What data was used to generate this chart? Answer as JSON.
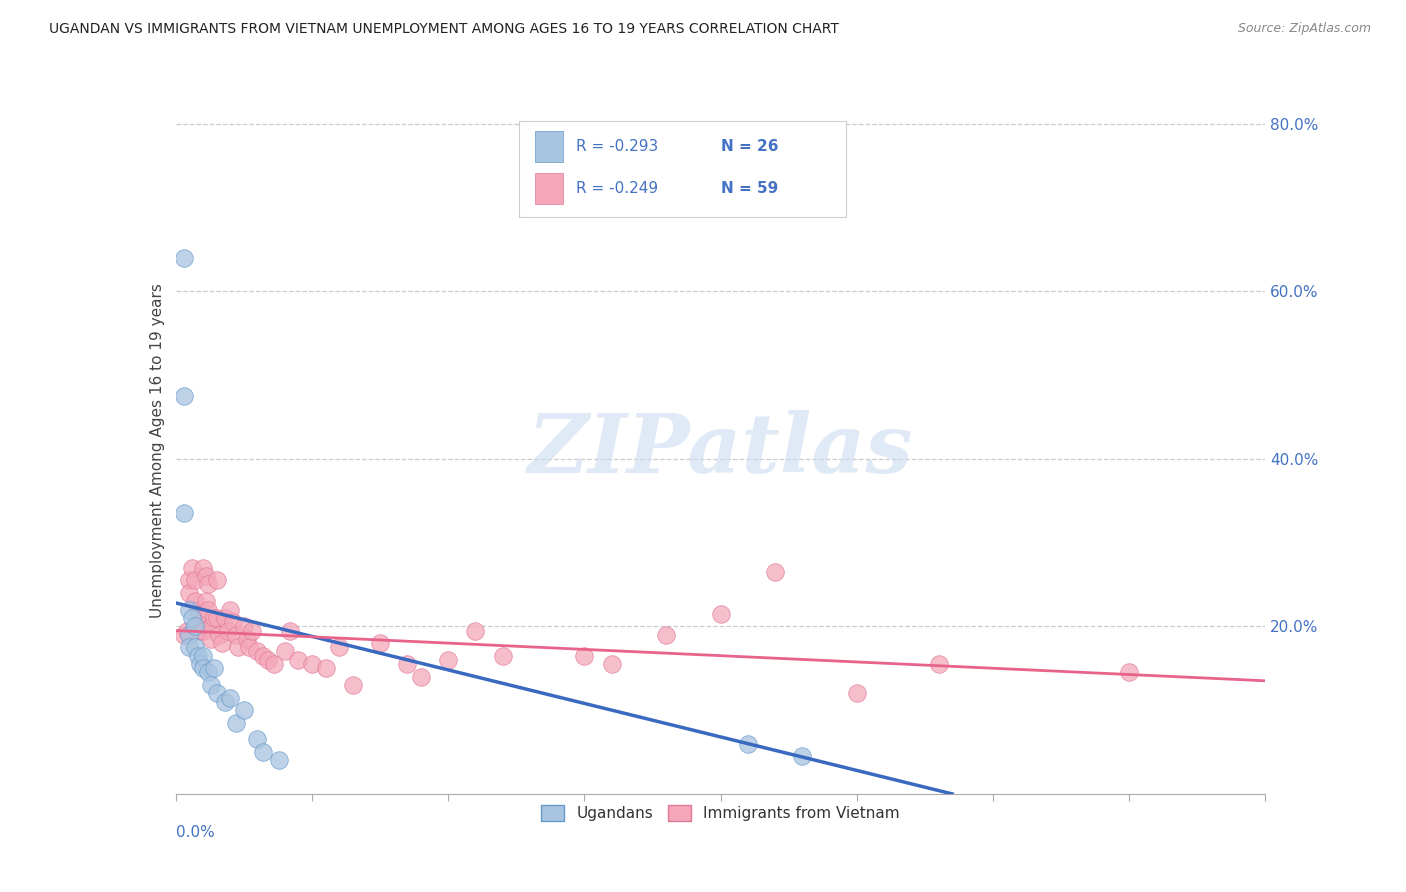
{
  "title": "UGANDAN VS IMMIGRANTS FROM VIETNAM UNEMPLOYMENT AMONG AGES 16 TO 19 YEARS CORRELATION CHART",
  "source": "Source: ZipAtlas.com",
  "ylabel": "Unemployment Among Ages 16 to 19 years",
  "xmin": 0.0,
  "xmax": 0.4,
  "ymin": 0.0,
  "ymax": 0.82,
  "right_ytick_vals": [
    0.2,
    0.4,
    0.6,
    0.8
  ],
  "right_yticklabels": [
    "20.0%",
    "40.0%",
    "60.0%",
    "80.0%"
  ],
  "watermark": "ZIPatlas",
  "legend_r1": "-0.293",
  "legend_n1": "26",
  "legend_r2": "-0.249",
  "legend_n2": "59",
  "legend_label1": "Ugandans",
  "legend_label2": "Immigrants from Vietnam",
  "color_ugandan": "#a8c4e0",
  "color_vietnam": "#f4a7b9",
  "color_border_ugandan": "#6699cc",
  "color_border_vietnam": "#e07898",
  "color_trendline_ugandan": "#3a6abf",
  "color_trendline_vietnam": "#e8638a",
  "color_text_blue": "#4472c4",
  "ugandan_x": [
    0.003,
    0.003,
    0.003,
    0.005,
    0.005,
    0.005,
    0.006,
    0.007,
    0.007,
    0.008,
    0.009,
    0.01,
    0.01,
    0.012,
    0.013,
    0.014,
    0.015,
    0.018,
    0.02,
    0.022,
    0.025,
    0.03,
    0.032,
    0.038,
    0.21,
    0.23
  ],
  "ugandan_y": [
    0.64,
    0.475,
    0.335,
    0.22,
    0.19,
    0.175,
    0.21,
    0.2,
    0.175,
    0.165,
    0.155,
    0.165,
    0.15,
    0.145,
    0.13,
    0.15,
    0.12,
    0.11,
    0.115,
    0.085,
    0.1,
    0.065,
    0.05,
    0.04,
    0.06,
    0.045
  ],
  "vietnam_x": [
    0.003,
    0.004,
    0.005,
    0.005,
    0.006,
    0.007,
    0.007,
    0.008,
    0.008,
    0.009,
    0.009,
    0.01,
    0.01,
    0.011,
    0.011,
    0.012,
    0.012,
    0.013,
    0.013,
    0.014,
    0.015,
    0.015,
    0.016,
    0.017,
    0.018,
    0.019,
    0.02,
    0.021,
    0.022,
    0.023,
    0.025,
    0.026,
    0.027,
    0.028,
    0.03,
    0.032,
    0.034,
    0.036,
    0.04,
    0.042,
    0.045,
    0.05,
    0.055,
    0.06,
    0.065,
    0.075,
    0.085,
    0.09,
    0.1,
    0.11,
    0.12,
    0.15,
    0.16,
    0.18,
    0.2,
    0.22,
    0.25,
    0.28,
    0.35
  ],
  "vietnam_y": [
    0.19,
    0.195,
    0.255,
    0.24,
    0.27,
    0.255,
    0.23,
    0.22,
    0.2,
    0.215,
    0.195,
    0.27,
    0.195,
    0.26,
    0.23,
    0.25,
    0.22,
    0.2,
    0.185,
    0.21,
    0.255,
    0.21,
    0.19,
    0.18,
    0.21,
    0.195,
    0.22,
    0.205,
    0.19,
    0.175,
    0.2,
    0.185,
    0.175,
    0.195,
    0.17,
    0.165,
    0.16,
    0.155,
    0.17,
    0.195,
    0.16,
    0.155,
    0.15,
    0.175,
    0.13,
    0.18,
    0.155,
    0.14,
    0.16,
    0.195,
    0.165,
    0.165,
    0.155,
    0.19,
    0.215,
    0.265,
    0.12,
    0.155,
    0.145
  ],
  "trendline_ug_x0": 0.0,
  "trendline_ug_y0": 0.228,
  "trendline_ug_x1": 0.285,
  "trendline_ug_y1": 0.0,
  "trendline_vn_x0": 0.0,
  "trendline_vn_y0": 0.195,
  "trendline_vn_x1": 0.4,
  "trendline_vn_y1": 0.135
}
